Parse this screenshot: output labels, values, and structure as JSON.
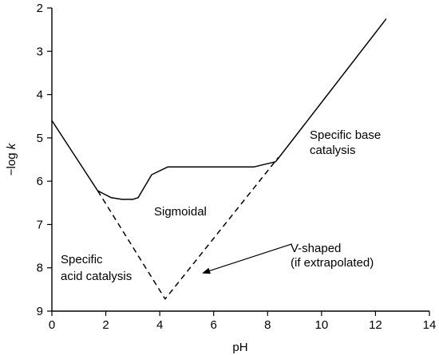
{
  "chart_data": {
    "type": "line",
    "title": "",
    "xlabel": "pH",
    "ylabel_prefix": "−log ",
    "ylabel_var": "k",
    "xlim": [
      0,
      14
    ],
    "ylim": [
      2,
      9
    ],
    "y_inverted": true,
    "grid": false,
    "xticks": [
      "0",
      "2",
      "4",
      "6",
      "8",
      "10",
      "12",
      "14"
    ],
    "yticks": [
      "2",
      "3",
      "4",
      "5",
      "6",
      "7",
      "8",
      "9"
    ],
    "series": [
      {
        "style": "solid",
        "x": [
          0,
          1.7,
          2.2,
          2.6,
          3.0,
          3.2,
          3.7,
          4.3,
          7.5,
          8.3,
          12.4
        ],
        "y": [
          4.6,
          6.22,
          6.38,
          6.42,
          6.42,
          6.38,
          5.85,
          5.67,
          5.67,
          5.55,
          2.25
        ]
      },
      {
        "style": "dashed",
        "x": [
          1.7,
          4.2,
          8.4
        ],
        "y": [
          6.22,
          8.72,
          5.45
        ]
      }
    ],
    "annotations": [
      {
        "lines": [
          "Specific base",
          "catalysis"
        ]
      },
      {
        "lines": [
          "Sigmoidal"
        ]
      },
      {
        "lines": [
          "V-shaped",
          "(if extrapolated)"
        ]
      },
      {
        "lines": [
          "Specific",
          "acid catalysis"
        ]
      }
    ],
    "arrow": {
      "from": [
        8.9,
        7.45
      ],
      "to": [
        5.6,
        8.12
      ]
    }
  }
}
